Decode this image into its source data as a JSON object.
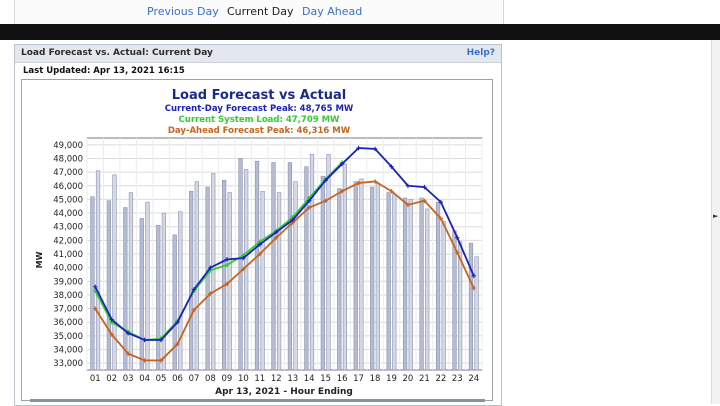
{
  "nav": {
    "previous_day": "Previous Day",
    "current_day": "Current Day",
    "day_ahead": "Day Ahead"
  },
  "panel": {
    "title": "Load Forecast vs. Actual: Current Day",
    "help": "Help?",
    "last_updated": "Last Updated: Apr 13, 2021 16:15"
  },
  "chart_data": {
    "type": "line",
    "title": "Load Forecast vs Actual",
    "subtitles": [
      {
        "text": "Current-Day Forecast Peak:  48,765 MW",
        "color": "#1a22b8"
      },
      {
        "text": "Current System Load:  47,709 MW",
        "color": "#33cc33"
      },
      {
        "text": "Day-Ahead Forecast Peak:  46,316 MW",
        "color": "#c8641e"
      }
    ],
    "xlabel": "Apr 13, 2021 - Hour Ending",
    "ylabel": "MW",
    "ylim": [
      32500,
      49500
    ],
    "yticks": [
      33000,
      34000,
      35000,
      36000,
      37000,
      38000,
      39000,
      40000,
      41000,
      42000,
      43000,
      44000,
      45000,
      46000,
      47000,
      48000,
      49000
    ],
    "ytick_labels": [
      "33,000",
      "34,000",
      "35,000",
      "36,000",
      "37,000",
      "38,000",
      "39,000",
      "40,000",
      "41,000",
      "42,000",
      "43,000",
      "44,000",
      "45,000",
      "46,000",
      "47,000",
      "48,000",
      "49,000"
    ],
    "categories": [
      "01",
      "02",
      "03",
      "04",
      "05",
      "06",
      "07",
      "08",
      "09",
      "10",
      "11",
      "12",
      "13",
      "14",
      "15",
      "16",
      "17",
      "18",
      "19",
      "20",
      "21",
      "22",
      "23",
      "24"
    ],
    "grid": true,
    "bar_series": [
      {
        "name": "bar-left",
        "color": "#b4bbd4",
        "values": [
          45200,
          44900,
          44400,
          43600,
          43100,
          42400,
          45600,
          45900,
          46400,
          48000,
          47800,
          47700,
          47700,
          47400,
          46700,
          45800,
          46300,
          45900,
          45500,
          45100,
          45100,
          44800,
          42700,
          41800
        ]
      },
      {
        "name": "bar-right",
        "color": "#d4d8e6",
        "values": [
          47100,
          46800,
          45500,
          44800,
          44000,
          44100,
          46300,
          46900,
          45500,
          47200,
          45600,
          45500,
          46300,
          48300,
          48300,
          47600,
          46500,
          46200,
          45400,
          45000,
          44300,
          43400,
          41900,
          40800
        ]
      }
    ],
    "series": [
      {
        "name": "Current-Day Forecast",
        "color": "#1a22b8",
        "values": [
          38600,
          36200,
          35200,
          34700,
          34700,
          36000,
          38400,
          40000,
          40600,
          40700,
          41700,
          42600,
          43500,
          44900,
          46400,
          47600,
          48765,
          48700,
          47400,
          46000,
          45900,
          44800,
          42200,
          39400
        ]
      },
      {
        "name": "Current System Load",
        "color": "#33cc33",
        "values": [
          38300,
          36000,
          35300,
          34700,
          34800,
          36100,
          38300,
          39800,
          40200,
          40900,
          41900,
          42700,
          43700,
          45100,
          46500,
          47709,
          null,
          null,
          null,
          null,
          null,
          null,
          null,
          null
        ]
      },
      {
        "name": "Day-Ahead Forecast",
        "color": "#c8641e",
        "values": [
          37000,
          35100,
          33700,
          33200,
          33200,
          34400,
          36900,
          38100,
          38800,
          39900,
          41000,
          42200,
          43300,
          44400,
          44900,
          45600,
          46200,
          46316,
          45600,
          44600,
          44900,
          43600,
          41100,
          38500
        ]
      }
    ]
  }
}
